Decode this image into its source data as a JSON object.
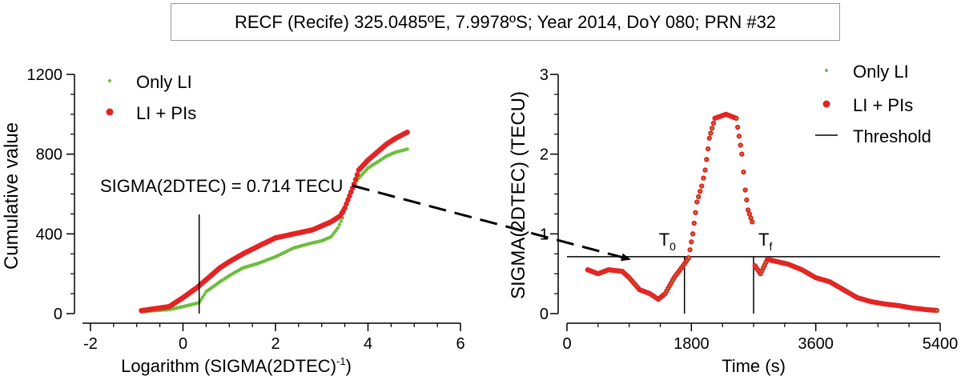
{
  "header": {
    "title": "RECF (Recife)  325.0485ºE, 7.9978ºS; Year 2014, DoY 080; PRN #32"
  },
  "colors": {
    "green": "#6cbf3c",
    "red": "#e32424",
    "axis": "#000000",
    "title_border": "#9a9a9a"
  },
  "chart_data": [
    {
      "type": "scatter",
      "ylabel": "Cumulative value",
      "xlabel": "Logarithm (SIGMA(2DTEC)",
      "xlabel_sup": "-1",
      "xlabel_suffix": ")",
      "xlim": [
        -2,
        6
      ],
      "ylim": [
        0,
        1200
      ],
      "xticks": [
        -2,
        0,
        2,
        4,
        6
      ],
      "yticks": [
        0,
        400,
        800,
        1200
      ],
      "legend": [
        "Only LI",
        "LI + PIs"
      ],
      "legend_position": "top-left",
      "annotation": "SIGMA(2DTEC) = 0.714 TECU",
      "threshold_x": 0.35,
      "series": [
        {
          "name": "Only LI",
          "color": "#6cbf3c",
          "points": [
            [
              -0.9,
              10
            ],
            [
              -0.3,
              20
            ],
            [
              0.0,
              35
            ],
            [
              0.35,
              55
            ],
            [
              0.5,
              110
            ],
            [
              0.8,
              160
            ],
            [
              1.0,
              190
            ],
            [
              1.3,
              230
            ],
            [
              1.6,
              250
            ],
            [
              2.0,
              285
            ],
            [
              2.4,
              330
            ],
            [
              2.8,
              355
            ],
            [
              3.0,
              365
            ],
            [
              3.2,
              385
            ],
            [
              3.35,
              430
            ],
            [
              3.45,
              480
            ],
            [
              3.55,
              560
            ],
            [
              3.65,
              620
            ],
            [
              3.8,
              680
            ],
            [
              4.0,
              730
            ],
            [
              4.2,
              760
            ],
            [
              4.4,
              790
            ],
            [
              4.6,
              810
            ],
            [
              4.85,
              825
            ]
          ]
        },
        {
          "name": "LI + PIs",
          "color": "#e32424",
          "points": [
            [
              -0.9,
              15
            ],
            [
              -0.3,
              35
            ],
            [
              0.0,
              80
            ],
            [
              0.3,
              130
            ],
            [
              0.6,
              190
            ],
            [
              0.8,
              230
            ],
            [
              1.0,
              260
            ],
            [
              1.3,
              300
            ],
            [
              1.6,
              335
            ],
            [
              2.0,
              380
            ],
            [
              2.4,
              400
            ],
            [
              2.8,
              420
            ],
            [
              3.0,
              440
            ],
            [
              3.2,
              460
            ],
            [
              3.4,
              490
            ],
            [
              3.5,
              530
            ],
            [
              3.6,
              590
            ],
            [
              3.7,
              650
            ],
            [
              3.8,
              720
            ],
            [
              4.0,
              770
            ],
            [
              4.2,
              810
            ],
            [
              4.4,
              850
            ],
            [
              4.6,
              880
            ],
            [
              4.85,
              910
            ]
          ]
        }
      ]
    },
    {
      "type": "scatter",
      "ylabel": "SIGMA(2DTEC) (TECU)",
      "xlabel": "Time (s)",
      "xlim": [
        0,
        5400
      ],
      "ylim": [
        0,
        3
      ],
      "xticks": [
        0,
        1800,
        3600,
        5400
      ],
      "yticks": [
        0,
        1,
        2,
        3
      ],
      "legend": [
        "Only LI",
        "LI + PIs",
        "Threshold"
      ],
      "legend_position": "top-right",
      "threshold": 0.714,
      "T0_label": "T",
      "T0_sub": "0",
      "Tf_label": "T",
      "Tf_sub": "f",
      "T0_time": 1700,
      "Tf_time": 2700,
      "series": [
        {
          "name": "Only LI / LI + PIs",
          "color": "#e32424",
          "points": [
            [
              300,
              0.55
            ],
            [
              450,
              0.5
            ],
            [
              600,
              0.55
            ],
            [
              800,
              0.53
            ],
            [
              900,
              0.45
            ],
            [
              1050,
              0.3
            ],
            [
              1200,
              0.25
            ],
            [
              1320,
              0.18
            ],
            [
              1420,
              0.25
            ],
            [
              1550,
              0.45
            ],
            [
              1680,
              0.6
            ],
            [
              1760,
              0.7
            ],
            [
              1820,
              1.0
            ],
            [
              1880,
              1.4
            ],
            [
              1950,
              1.6
            ],
            [
              2000,
              1.8
            ],
            [
              2060,
              2.2
            ],
            [
              2140,
              2.45
            ],
            [
              2300,
              2.5
            ],
            [
              2450,
              2.45
            ],
            [
              2530,
              2.0
            ],
            [
              2580,
              1.55
            ],
            [
              2620,
              1.3
            ],
            [
              2680,
              1.15
            ],
            [
              2720,
              0.6
            ],
            [
              2800,
              0.5
            ],
            [
              2900,
              0.68
            ],
            [
              3050,
              0.65
            ],
            [
              3200,
              0.62
            ],
            [
              3400,
              0.55
            ],
            [
              3600,
              0.45
            ],
            [
              3800,
              0.4
            ],
            [
              4000,
              0.3
            ],
            [
              4200,
              0.2
            ],
            [
              4400,
              0.15
            ],
            [
              4600,
              0.12
            ],
            [
              4800,
              0.1
            ],
            [
              5000,
              0.07
            ],
            [
              5200,
              0.05
            ],
            [
              5350,
              0.04
            ]
          ]
        }
      ]
    }
  ]
}
